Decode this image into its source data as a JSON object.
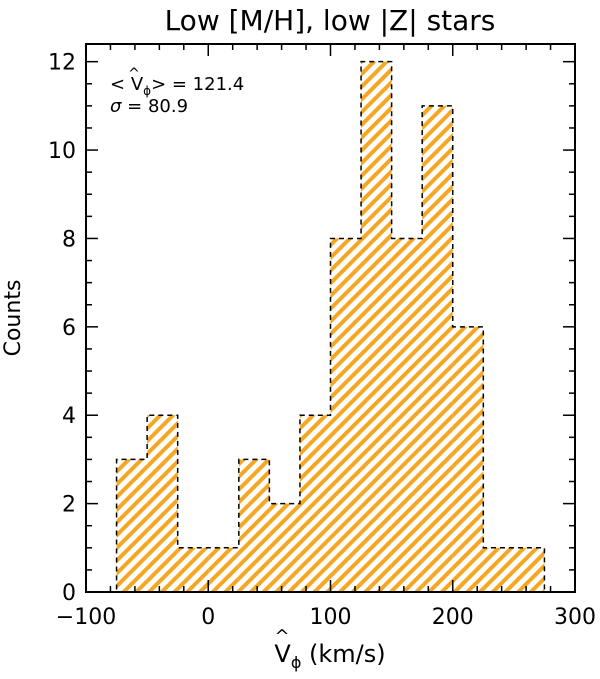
{
  "chart_data": {
    "type": "bar",
    "title": "Low [M/H], low |Z| stars",
    "xlabel_main": "V",
    "xlabel_sub": "ϕ",
    "xlabel_unit": " (km/s)",
    "ylabel": "Counts",
    "xlim": [
      -100,
      300
    ],
    "ylim": [
      0,
      12.4
    ],
    "xticks": [
      -100,
      0,
      100,
      200,
      300
    ],
    "xtick_labels": [
      "−100",
      "0",
      "100",
      "200",
      "300"
    ],
    "yticks": [
      0,
      2,
      4,
      6,
      8,
      10,
      12
    ],
    "ytick_labels": [
      "0",
      "2",
      "4",
      "6",
      "8",
      "10",
      "12"
    ],
    "bin_width": 25,
    "bins": [
      {
        "x0": -75,
        "x1": -50,
        "count": 3
      },
      {
        "x0": -50,
        "x1": -25,
        "count": 4
      },
      {
        "x0": -25,
        "x1": 0,
        "count": 1
      },
      {
        "x0": 0,
        "x1": 25,
        "count": 1
      },
      {
        "x0": 25,
        "x1": 50,
        "count": 3
      },
      {
        "x0": 50,
        "x1": 75,
        "count": 2
      },
      {
        "x0": 75,
        "x1": 100,
        "count": 4
      },
      {
        "x0": 100,
        "x1": 125,
        "count": 8
      },
      {
        "x0": 125,
        "x1": 150,
        "count": 12
      },
      {
        "x0": 150,
        "x1": 175,
        "count": 8
      },
      {
        "x0": 175,
        "x1": 200,
        "count": 11
      },
      {
        "x0": 200,
        "x1": 225,
        "count": 6
      },
      {
        "x0": 225,
        "x1": 250,
        "count": 1
      },
      {
        "x0": 250,
        "x1": 275,
        "count": 1
      }
    ],
    "annotations": {
      "mean_label": "V",
      "mean_sub": "ϕ",
      "mean_open": "< ",
      "mean_close": "> = 121.4",
      "sigma_label": "σ",
      "sigma_value": " =   80.9"
    },
    "fill_color": "#f5a623",
    "outline_color": "#000000",
    "grid": false
  }
}
